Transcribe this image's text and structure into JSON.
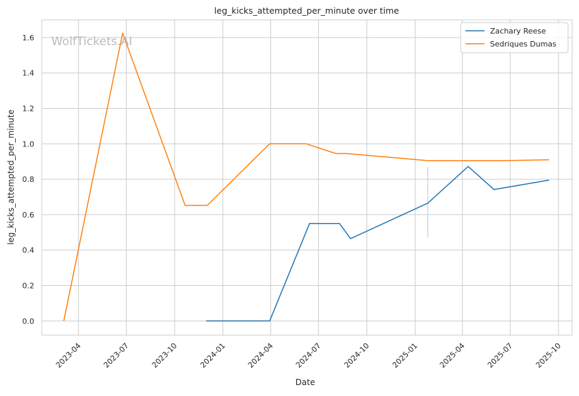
{
  "chart_data": {
    "type": "line",
    "title": "leg_kicks_attempted_per_minute over time",
    "xlabel": "Date",
    "ylabel": "leg_kicks_attempted_per_minute",
    "watermark": "WolfTickets.AI",
    "grid": true,
    "legend_position": "top-right",
    "xlim": [
      "2023-01-21",
      "2025-10-27"
    ],
    "ylim": [
      -0.08,
      1.7
    ],
    "x_ticks": [
      "2023-04",
      "2023-07",
      "2023-10",
      "2024-01",
      "2024-04",
      "2024-07",
      "2024-10",
      "2025-01",
      "2025-04",
      "2025-07",
      "2025-10"
    ],
    "y_ticks": [
      "0.0",
      "0.2",
      "0.4",
      "0.6",
      "0.8",
      "1.0",
      "1.2",
      "1.4",
      "1.6"
    ],
    "series": [
      {
        "name": "Zachary Reese",
        "color": "#1f77b4",
        "points": [
          {
            "x": "2023-11-30",
            "y": 0.0
          },
          {
            "x": "2024-03-30",
            "y": 0.0
          },
          {
            "x": "2024-06-14",
            "y": 0.55
          },
          {
            "x": "2024-08-10",
            "y": 0.55
          },
          {
            "x": "2024-08-31",
            "y": 0.465
          },
          {
            "x": "2025-01-25",
            "y": 0.665
          },
          {
            "x": "2025-04-12",
            "y": 0.872
          },
          {
            "x": "2025-05-31",
            "y": 0.742
          },
          {
            "x": "2025-09-13",
            "y": 0.795
          }
        ]
      },
      {
        "name": "Sedriques Dumas",
        "color": "#ff7f0e",
        "points": [
          {
            "x": "2023-03-04",
            "y": 0.0
          },
          {
            "x": "2023-06-24",
            "y": 1.625
          },
          {
            "x": "2023-10-21",
            "y": 0.652
          },
          {
            "x": "2023-12-02",
            "y": 0.652
          },
          {
            "x": "2024-03-30",
            "y": 1.0
          },
          {
            "x": "2024-06-08",
            "y": 1.0
          },
          {
            "x": "2024-08-03",
            "y": 0.945
          },
          {
            "x": "2024-08-24",
            "y": 0.945
          },
          {
            "x": "2025-01-25",
            "y": 0.905
          },
          {
            "x": "2025-04-26",
            "y": 0.905
          },
          {
            "x": "2025-06-14",
            "y": 0.905
          },
          {
            "x": "2025-09-13",
            "y": 0.91
          }
        ]
      }
    ],
    "annotations": [
      {
        "type": "vertical-line",
        "x": "2025-01-25",
        "y_range": [
          0.47,
          0.87
        ],
        "color": "#aec7e8"
      }
    ]
  }
}
